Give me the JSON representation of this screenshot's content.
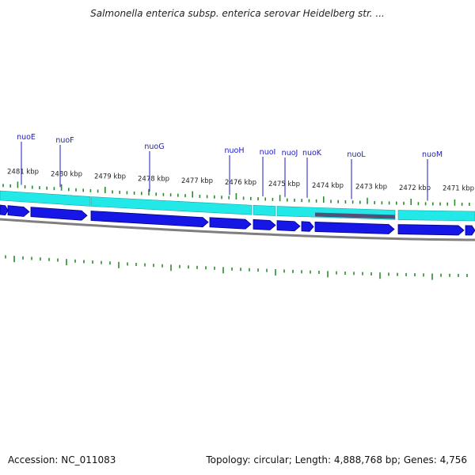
{
  "title": "Salmonella enterica subsp. enterica serovar Heidelberg str. ...",
  "accession_text": "Accession: NC_011083",
  "summary_text": "Topology: circular; Length: 4,888,768 bp; Genes: 4,756",
  "colors": {
    "backbone": "#7f7f7f",
    "cds_track": "#1616e6",
    "cds_outline": "#000088",
    "feature_track": "#22e8e8",
    "feature_dark": "#505078",
    "tick_marks": "#2c8c2c",
    "gene_leader": "#1a1ac8"
  },
  "genes": [
    {
      "name": "nuoE"
    },
    {
      "name": "nuoF"
    },
    {
      "name": "nuoG"
    },
    {
      "name": "nuoH"
    },
    {
      "name": "nuoI"
    },
    {
      "name": "nuoJ"
    },
    {
      "name": "nuoK"
    },
    {
      "name": "nuoL"
    },
    {
      "name": "nuoM"
    }
  ],
  "scale_labels": [
    {
      "text": "2481 kbp"
    },
    {
      "text": "2480 kbp"
    },
    {
      "text": "2479 kbp"
    },
    {
      "text": "2478 kbp"
    },
    {
      "text": "2477 kbp"
    },
    {
      "text": "2476 kbp"
    },
    {
      "text": "2475 kbp"
    },
    {
      "text": "2474 kbp"
    },
    {
      "text": "2473 kbp"
    },
    {
      "text": "2472 kbp"
    },
    {
      "text": "2471 kbp"
    }
  ]
}
